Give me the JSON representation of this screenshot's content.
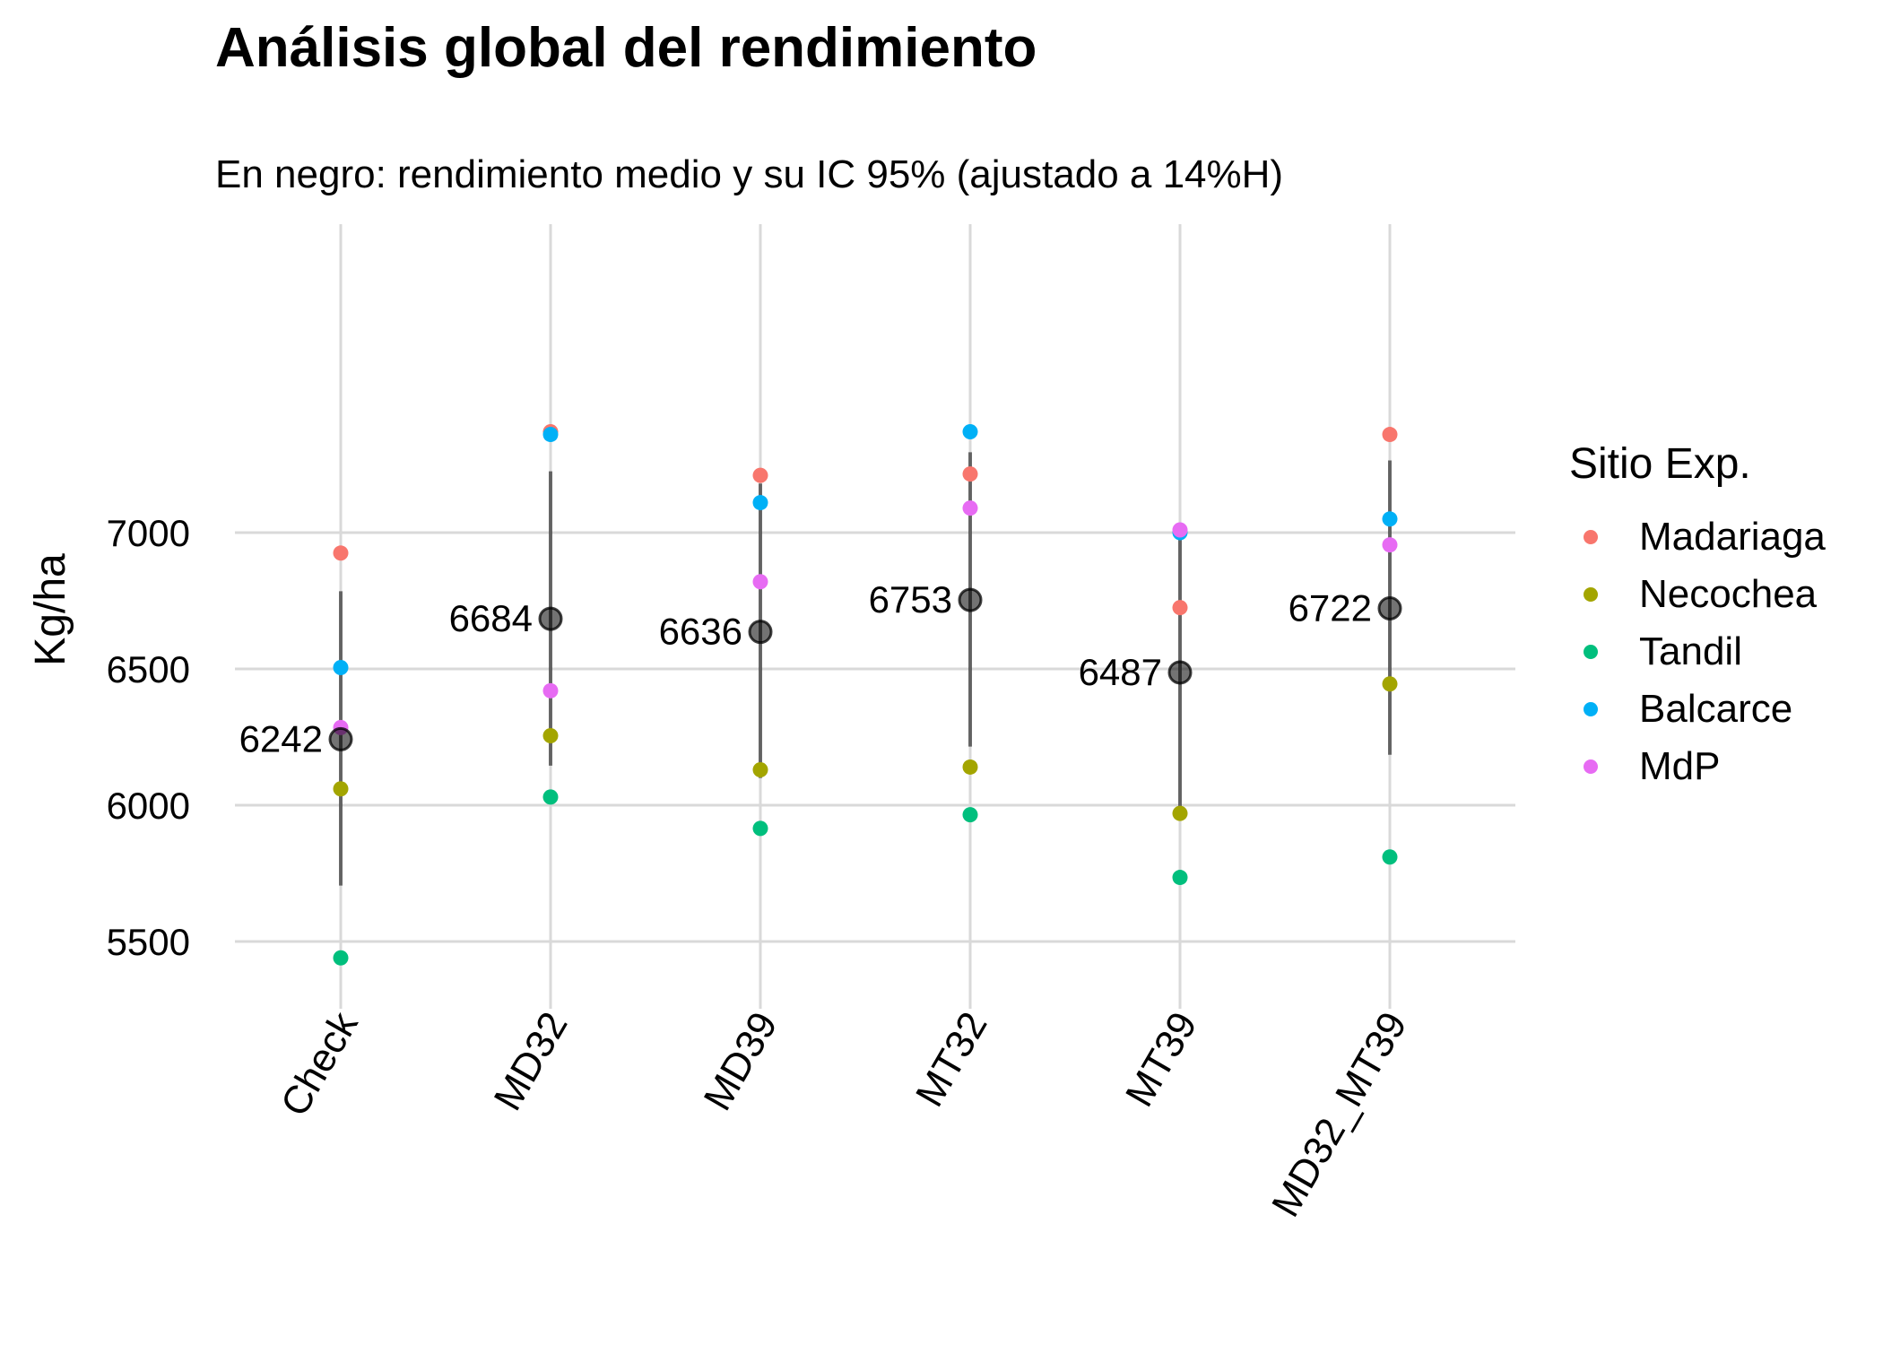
{
  "chart_data": {
    "type": "scatter",
    "title": "Análisis global del rendimiento",
    "subtitle": "En negro: rendimiento medio y su IC 95% (ajustado a 14%H)",
    "ylabel": "Kg/ha",
    "xlabel": "",
    "categories": [
      "Check",
      "MD32",
      "MD39",
      "MT32",
      "MT39",
      "MD32_MT39"
    ],
    "ylim": [
      5325,
      7480
    ],
    "yticks": [
      5500,
      6000,
      6500,
      7000
    ],
    "grid": true,
    "legend_title": "Sitio Exp.",
    "legend_position": "right",
    "series": [
      {
        "name": "Madariaga",
        "color": "#F8766D",
        "values": [
          6925,
          7370,
          7210,
          7215,
          6725,
          7360
        ]
      },
      {
        "name": "Necochea",
        "color": "#A3A500",
        "values": [
          6060,
          6255,
          6130,
          6140,
          5970,
          6445
        ]
      },
      {
        "name": "Tandil",
        "color": "#00BF7D",
        "values": [
          5440,
          6030,
          5915,
          5965,
          5735,
          5810
        ]
      },
      {
        "name": "Balcarce",
        "color": "#00B0F6",
        "values": [
          6505,
          7360,
          7110,
          7370,
          7000,
          7050
        ]
      },
      {
        "name": "MdP",
        "color": "#E76BF3",
        "values": [
          6285,
          6420,
          6820,
          7090,
          7010,
          6955
        ]
      }
    ],
    "means": [
      {
        "category": "Check",
        "mean": 6242,
        "label": "6242",
        "ci": [
          5705,
          6785
        ]
      },
      {
        "category": "MD32",
        "mean": 6684,
        "label": "6684",
        "ci": [
          6145,
          7225
        ]
      },
      {
        "category": "MD39",
        "mean": 6636,
        "label": "6636",
        "ci": [
          6100,
          7180
        ]
      },
      {
        "category": "MT32",
        "mean": 6753,
        "label": "6753",
        "ci": [
          6215,
          7295
        ]
      },
      {
        "category": "MT39",
        "mean": 6487,
        "label": "6487",
        "ci": [
          5950,
          7025
        ]
      },
      {
        "category": "MD32_MT39",
        "mean": 6722,
        "label": "6722",
        "ci": [
          6185,
          7265
        ]
      }
    ],
    "mean_color": "#000000"
  }
}
